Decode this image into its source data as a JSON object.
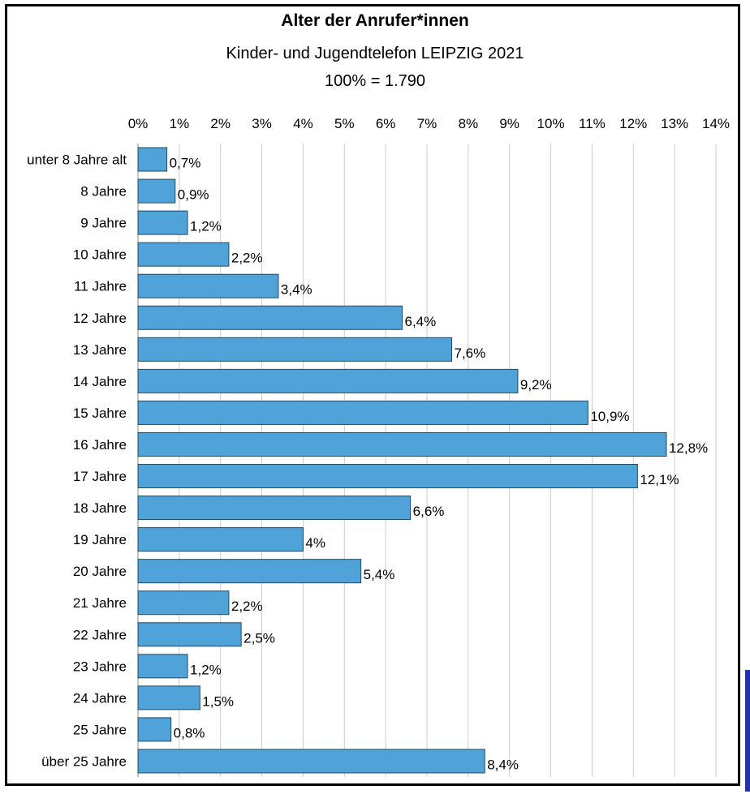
{
  "colors": {
    "bar": "#4fa3d8",
    "bar_stroke": "#1f4a66",
    "grid": "#cccccc",
    "frame": "#000000"
  },
  "chart_data": {
    "type": "bar",
    "orientation": "horizontal",
    "title": "Alter der Anrufer*innen",
    "subtitle": "Kinder- und Jugendtelefon LEIPZIG 2021",
    "subtitle2": "100% = 1.790",
    "xlim": [
      0,
      14
    ],
    "xticks": [
      "0%",
      "1%",
      "2%",
      "3%",
      "4%",
      "5%",
      "6%",
      "7%",
      "8%",
      "9%",
      "10%",
      "11%",
      "12%",
      "13%",
      "14%"
    ],
    "grid": true,
    "categories": [
      "unter 8 Jahre alt",
      "8 Jahre",
      "9 Jahre",
      "10 Jahre",
      "11 Jahre",
      "12 Jahre",
      "13 Jahre",
      "14 Jahre",
      "15 Jahre",
      "16 Jahre",
      "17 Jahre",
      "18 Jahre",
      "19 Jahre",
      "20 Jahre",
      "21 Jahre",
      "22 Jahre",
      "23 Jahre",
      "24 Jahre",
      "25 Jahre",
      "über 25 Jahre"
    ],
    "values": [
      0.7,
      0.9,
      1.2,
      2.2,
      3.4,
      6.4,
      7.6,
      9.2,
      10.9,
      12.8,
      12.1,
      6.6,
      4,
      5.4,
      2.2,
      2.5,
      1.2,
      1.5,
      0.8,
      8.4
    ],
    "labels": [
      "0,7%",
      "0,9%",
      "1,2%",
      "2,2%",
      "3,4%",
      "6,4%",
      "7,6%",
      "9,2%",
      "10,9%",
      "12,8%",
      "12,1%",
      "6,6%",
      "4%",
      "5,4%",
      "2,2%",
      "2,5%",
      "1,2%",
      "1,5%",
      "0,8%",
      "8,4%"
    ]
  }
}
